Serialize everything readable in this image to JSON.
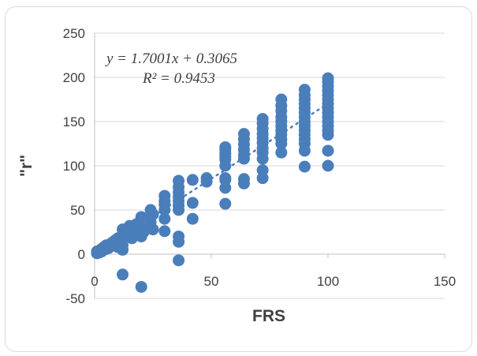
{
  "chart_data": {
    "type": "scatter",
    "title": "",
    "xlabel": "FRS",
    "ylabel": "\"r\"",
    "xlim": [
      0,
      150
    ],
    "ylim": [
      -50,
      250
    ],
    "x_ticks": [
      "0",
      "50",
      "100",
      "150"
    ],
    "y_ticks": [
      "-50",
      "0",
      "50",
      "100",
      "150",
      "200",
      "250"
    ],
    "grid": "horizontal",
    "legend": "none",
    "marker_color": "#4a7ebb",
    "trendline": {
      "type": "linear",
      "slope": 1.7001,
      "intercept": 0.3065,
      "color": "#4a7ebb",
      "style": "dotted",
      "equation_label": "y = 1.7001x + 0.3065",
      "r2_label": "R² = 0.9453"
    },
    "series": [
      {
        "points": [
          [
            1,
            1
          ],
          [
            1,
            3
          ],
          [
            2,
            2
          ],
          [
            2,
            4
          ],
          [
            3,
            3
          ],
          [
            3,
            6
          ],
          [
            4,
            5
          ],
          [
            4,
            8
          ],
          [
            5,
            6
          ],
          [
            5,
            10
          ],
          [
            6,
            7
          ],
          [
            6,
            10
          ],
          [
            7,
            9
          ],
          [
            7,
            12
          ],
          [
            8,
            10
          ],
          [
            8,
            14
          ],
          [
            9,
            11
          ],
          [
            9,
            16
          ],
          [
            10,
            13
          ],
          [
            10,
            18
          ],
          [
            10,
            8
          ],
          [
            12,
            10
          ],
          [
            12,
            16
          ],
          [
            12,
            22
          ],
          [
            12,
            28
          ],
          [
            12,
            -23
          ],
          [
            12,
            5
          ],
          [
            15,
            20
          ],
          [
            15,
            26
          ],
          [
            15,
            32
          ],
          [
            16,
            18
          ],
          [
            16,
            28
          ],
          [
            18,
            22
          ],
          [
            18,
            28
          ],
          [
            18,
            34
          ],
          [
            20,
            20
          ],
          [
            20,
            30
          ],
          [
            20,
            42
          ],
          [
            20,
            -37
          ],
          [
            21,
            25
          ],
          [
            24,
            30
          ],
          [
            24,
            36
          ],
          [
            24,
            42
          ],
          [
            24,
            50
          ],
          [
            25,
            28
          ],
          [
            25,
            45
          ],
          [
            30,
            26
          ],
          [
            30,
            40
          ],
          [
            30,
            50
          ],
          [
            30,
            56
          ],
          [
            30,
            60
          ],
          [
            30,
            66
          ],
          [
            36,
            -7
          ],
          [
            36,
            14
          ],
          [
            36,
            20
          ],
          [
            36,
            50
          ],
          [
            36,
            55
          ],
          [
            36,
            60
          ],
          [
            36,
            65
          ],
          [
            36,
            70
          ],
          [
            36,
            76
          ],
          [
            36,
            83
          ],
          [
            42,
            40
          ],
          [
            42,
            58
          ],
          [
            42,
            84
          ],
          [
            48,
            82
          ],
          [
            48,
            86
          ],
          [
            56,
            57
          ],
          [
            56,
            75
          ],
          [
            56,
            84
          ],
          [
            56,
            86
          ],
          [
            56,
            100
          ],
          [
            56,
            107
          ],
          [
            56,
            110
          ],
          [
            56,
            114
          ],
          [
            56,
            118
          ],
          [
            56,
            121
          ],
          [
            64,
            80
          ],
          [
            64,
            85
          ],
          [
            64,
            108
          ],
          [
            64,
            112
          ],
          [
            64,
            118
          ],
          [
            64,
            124
          ],
          [
            64,
            130
          ],
          [
            64,
            136
          ],
          [
            72,
            86
          ],
          [
            72,
            95
          ],
          [
            72,
            108
          ],
          [
            72,
            115
          ],
          [
            72,
            120
          ],
          [
            72,
            126
          ],
          [
            72,
            131
          ],
          [
            72,
            136
          ],
          [
            72,
            142
          ],
          [
            72,
            148
          ],
          [
            72,
            153
          ],
          [
            80,
            115
          ],
          [
            80,
            125
          ],
          [
            80,
            130
          ],
          [
            80,
            135
          ],
          [
            80,
            140
          ],
          [
            80,
            145
          ],
          [
            80,
            150
          ],
          [
            80,
            155
          ],
          [
            80,
            162
          ],
          [
            80,
            168
          ],
          [
            80,
            175
          ],
          [
            90,
            99
          ],
          [
            90,
            117
          ],
          [
            90,
            125
          ],
          [
            90,
            130
          ],
          [
            90,
            135
          ],
          [
            90,
            140
          ],
          [
            90,
            145
          ],
          [
            90,
            150
          ],
          [
            90,
            155
          ],
          [
            90,
            160
          ],
          [
            90,
            165
          ],
          [
            90,
            170
          ],
          [
            90,
            175
          ],
          [
            90,
            180
          ],
          [
            90,
            186
          ],
          [
            100,
            100
          ],
          [
            100,
            117
          ],
          [
            100,
            135
          ],
          [
            100,
            140
          ],
          [
            100,
            145
          ],
          [
            100,
            150
          ],
          [
            100,
            155
          ],
          [
            100,
            160
          ],
          [
            100,
            165
          ],
          [
            100,
            170
          ],
          [
            100,
            175
          ],
          [
            100,
            180
          ],
          [
            100,
            185
          ],
          [
            100,
            190
          ],
          [
            100,
            195
          ],
          [
            100,
            199
          ]
        ]
      }
    ]
  }
}
